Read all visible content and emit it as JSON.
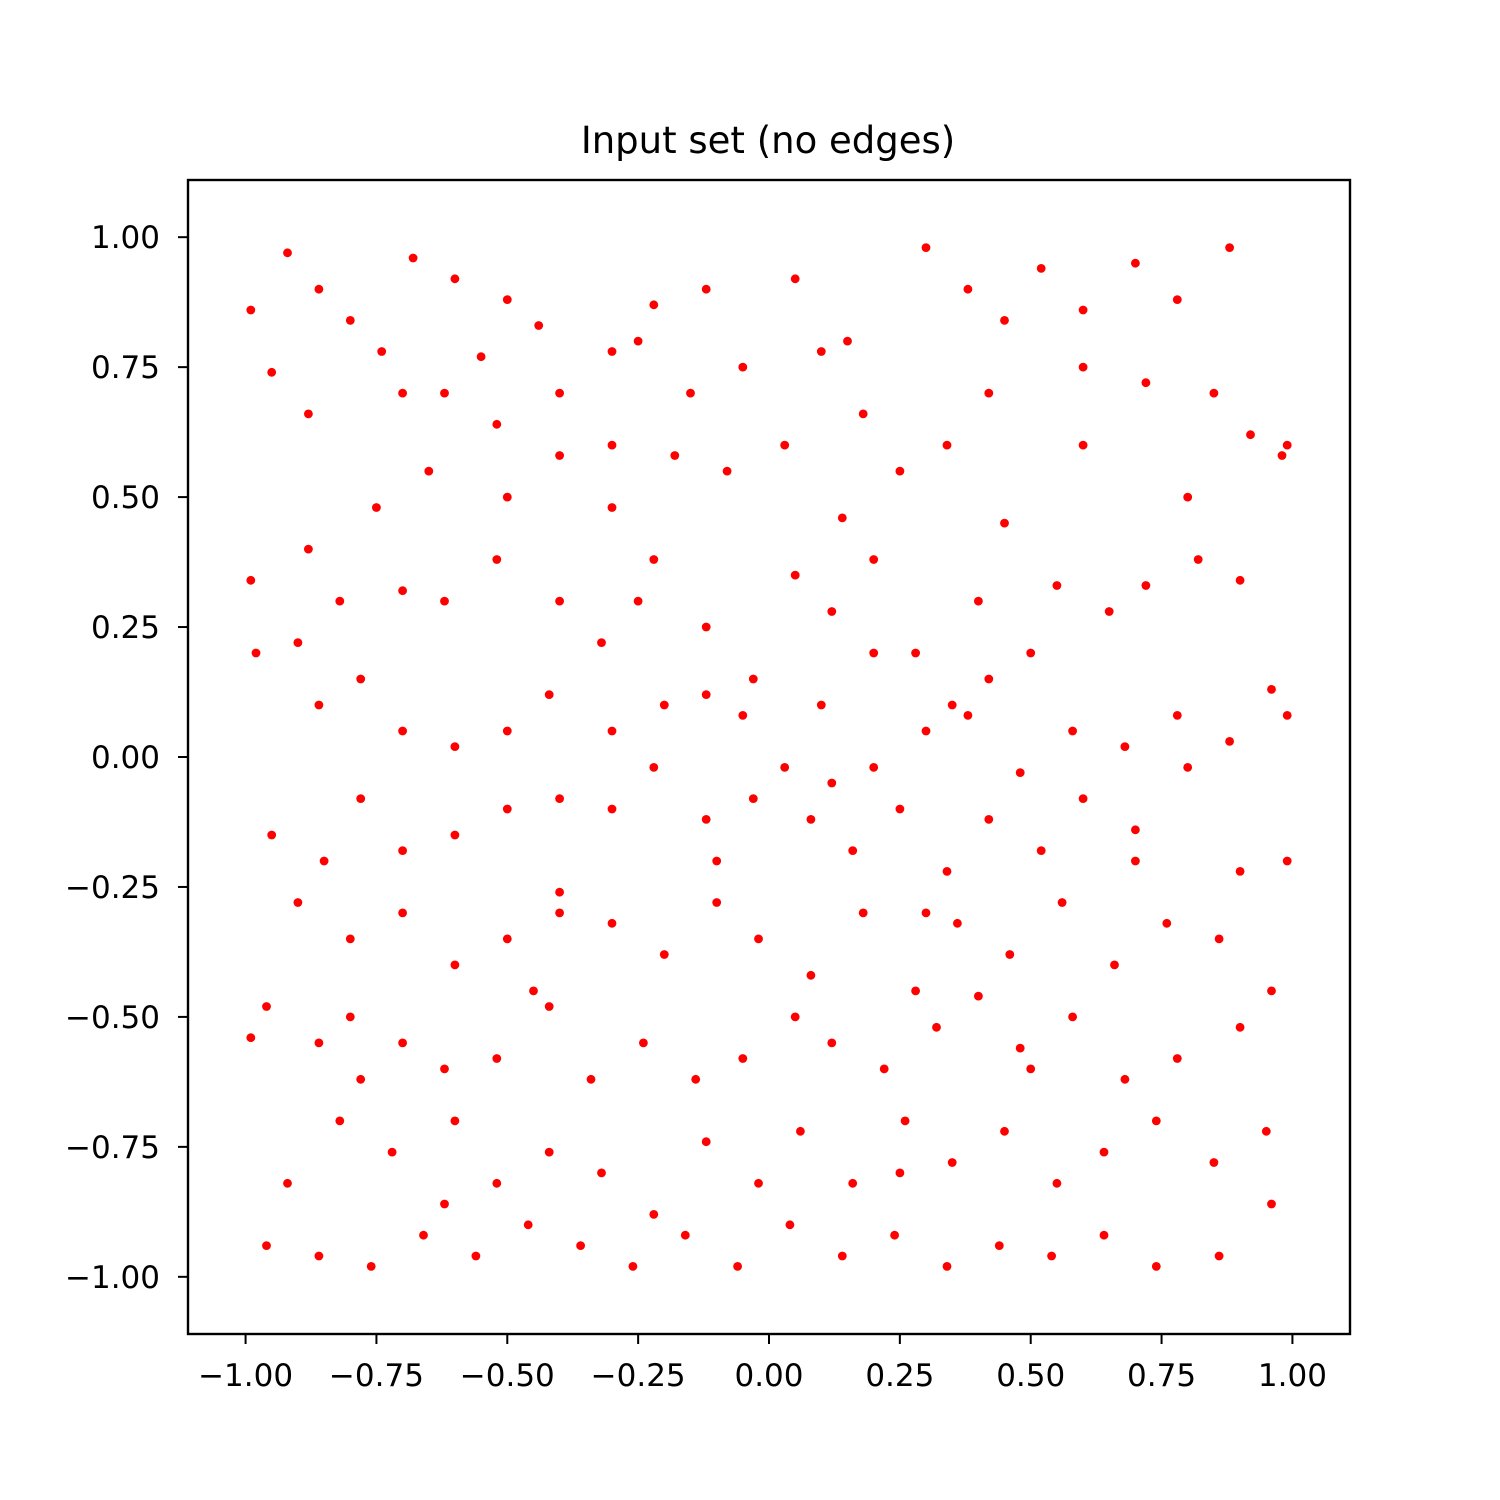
{
  "chart_data": {
    "type": "scatter",
    "title": "Input set (no edges)",
    "xlabel": "",
    "ylabel": "",
    "xlim": [
      -1.11,
      1.11
    ],
    "ylim": [
      -1.11,
      1.11
    ],
    "x_ticks": [
      -1.0,
      -0.75,
      -0.5,
      -0.25,
      0.0,
      0.25,
      0.5,
      0.75,
      1.0
    ],
    "y_ticks": [
      -1.0,
      -0.75,
      -0.5,
      -0.25,
      0.0,
      0.25,
      0.5,
      0.75,
      1.0
    ],
    "x_tick_labels": [
      "−1.00",
      "−0.75",
      "−0.50",
      "−0.25",
      "0.00",
      "0.25",
      "0.50",
      "0.75",
      "1.00"
    ],
    "y_tick_labels": [
      "−1.00",
      "−0.75",
      "−0.50",
      "−0.25",
      "0.00",
      "0.25",
      "0.50",
      "0.75",
      "1.00"
    ],
    "grid": false,
    "legend": "none",
    "marker_color": "#ff0000",
    "series": [
      {
        "points": [
          [
            -0.92,
            0.97
          ],
          [
            -0.86,
            0.9
          ],
          [
            -0.8,
            0.84
          ],
          [
            -0.74,
            0.78
          ],
          [
            -0.95,
            0.74
          ],
          [
            -0.88,
            0.66
          ],
          [
            -0.68,
            0.96
          ],
          [
            -0.6,
            0.92
          ],
          [
            -0.5,
            0.88
          ],
          [
            -0.44,
            0.83
          ],
          [
            -0.62,
            0.7
          ],
          [
            -0.55,
            0.77
          ],
          [
            -0.4,
            0.7
          ],
          [
            -0.3,
            0.78
          ],
          [
            -0.22,
            0.87
          ],
          [
            -0.12,
            0.9
          ],
          [
            -0.05,
            0.75
          ],
          [
            0.05,
            0.92
          ],
          [
            0.1,
            0.78
          ],
          [
            0.18,
            0.66
          ],
          [
            0.3,
            0.98
          ],
          [
            0.38,
            0.9
          ],
          [
            0.45,
            0.84
          ],
          [
            0.52,
            0.94
          ],
          [
            0.6,
            0.86
          ],
          [
            0.7,
            0.95
          ],
          [
            0.78,
            0.88
          ],
          [
            0.88,
            0.98
          ],
          [
            0.85,
            0.7
          ],
          [
            0.92,
            0.62
          ],
          [
            0.98,
            0.58
          ],
          [
            0.72,
            0.72
          ],
          [
            0.6,
            0.75
          ],
          [
            0.42,
            0.7
          ],
          [
            0.34,
            0.6
          ],
          [
            0.25,
            0.55
          ],
          [
            0.14,
            0.46
          ],
          [
            0.03,
            0.6
          ],
          [
            -0.08,
            0.55
          ],
          [
            -0.18,
            0.58
          ],
          [
            -0.3,
            0.48
          ],
          [
            -0.4,
            0.58
          ],
          [
            -0.52,
            0.64
          ],
          [
            -0.65,
            0.55
          ],
          [
            -0.75,
            0.48
          ],
          [
            -0.88,
            0.4
          ],
          [
            -0.82,
            0.3
          ],
          [
            -0.9,
            0.22
          ],
          [
            -0.98,
            0.2
          ],
          [
            -0.7,
            0.32
          ],
          [
            -0.62,
            0.3
          ],
          [
            -0.52,
            0.38
          ],
          [
            -0.4,
            0.3
          ],
          [
            -0.32,
            0.22
          ],
          [
            -0.22,
            0.38
          ],
          [
            -0.12,
            0.25
          ],
          [
            -0.03,
            0.15
          ],
          [
            0.05,
            0.35
          ],
          [
            0.12,
            0.28
          ],
          [
            0.2,
            0.38
          ],
          [
            0.28,
            0.2
          ],
          [
            0.35,
            0.1
          ],
          [
            0.42,
            0.15
          ],
          [
            0.5,
            0.2
          ],
          [
            0.55,
            0.33
          ],
          [
            0.65,
            0.28
          ],
          [
            0.72,
            0.33
          ],
          [
            0.82,
            0.38
          ],
          [
            0.9,
            0.34
          ],
          [
            0.96,
            0.13
          ],
          [
            0.88,
            0.03
          ],
          [
            0.78,
            0.08
          ],
          [
            0.68,
            0.02
          ],
          [
            0.58,
            0.05
          ],
          [
            0.48,
            -0.03
          ],
          [
            0.38,
            0.08
          ],
          [
            0.3,
            0.05
          ],
          [
            0.2,
            -0.02
          ],
          [
            0.12,
            -0.05
          ],
          [
            0.03,
            -0.02
          ],
          [
            -0.05,
            0.08
          ],
          [
            -0.12,
            0.12
          ],
          [
            -0.2,
            0.1
          ],
          [
            -0.3,
            0.05
          ],
          [
            -0.42,
            0.12
          ],
          [
            -0.5,
            0.05
          ],
          [
            -0.6,
            0.02
          ],
          [
            -0.7,
            0.05
          ],
          [
            -0.78,
            0.15
          ],
          [
            -0.86,
            0.1
          ],
          [
            -0.95,
            -0.15
          ],
          [
            -0.85,
            -0.2
          ],
          [
            -0.78,
            -0.08
          ],
          [
            -0.7,
            -0.18
          ],
          [
            -0.6,
            -0.15
          ],
          [
            -0.5,
            -0.1
          ],
          [
            -0.4,
            -0.08
          ],
          [
            -0.3,
            -0.1
          ],
          [
            -0.22,
            -0.02
          ],
          [
            -0.12,
            -0.12
          ],
          [
            -0.03,
            -0.08
          ],
          [
            0.08,
            -0.12
          ],
          [
            0.16,
            -0.18
          ],
          [
            0.25,
            -0.1
          ],
          [
            0.34,
            -0.22
          ],
          [
            0.42,
            -0.12
          ],
          [
            0.52,
            -0.18
          ],
          [
            0.6,
            -0.08
          ],
          [
            0.7,
            -0.14
          ],
          [
            0.8,
            -0.02
          ],
          [
            0.9,
            -0.22
          ],
          [
            0.96,
            -0.45
          ],
          [
            0.86,
            -0.35
          ],
          [
            0.76,
            -0.32
          ],
          [
            0.66,
            -0.4
          ],
          [
            0.56,
            -0.28
          ],
          [
            0.46,
            -0.38
          ],
          [
            0.36,
            -0.32
          ],
          [
            0.28,
            -0.45
          ],
          [
            0.18,
            -0.3
          ],
          [
            0.08,
            -0.42
          ],
          [
            -0.02,
            -0.35
          ],
          [
            -0.1,
            -0.28
          ],
          [
            -0.2,
            -0.38
          ],
          [
            -0.3,
            -0.32
          ],
          [
            -0.4,
            -0.26
          ],
          [
            -0.5,
            -0.35
          ],
          [
            -0.6,
            -0.4
          ],
          [
            -0.7,
            -0.3
          ],
          [
            -0.8,
            -0.35
          ],
          [
            -0.9,
            -0.28
          ],
          [
            -0.96,
            -0.48
          ],
          [
            -0.86,
            -0.55
          ],
          [
            -0.78,
            -0.62
          ],
          [
            -0.7,
            -0.55
          ],
          [
            -0.62,
            -0.6
          ],
          [
            -0.52,
            -0.58
          ],
          [
            -0.42,
            -0.48
          ],
          [
            -0.34,
            -0.62
          ],
          [
            -0.24,
            -0.55
          ],
          [
            -0.14,
            -0.62
          ],
          [
            -0.05,
            -0.58
          ],
          [
            0.05,
            -0.5
          ],
          [
            0.12,
            -0.55
          ],
          [
            0.22,
            -0.6
          ],
          [
            0.32,
            -0.52
          ],
          [
            0.4,
            -0.46
          ],
          [
            0.48,
            -0.56
          ],
          [
            0.58,
            -0.5
          ],
          [
            0.68,
            -0.62
          ],
          [
            0.78,
            -0.58
          ],
          [
            0.9,
            -0.52
          ],
          [
            0.95,
            -0.72
          ],
          [
            0.85,
            -0.78
          ],
          [
            0.74,
            -0.7
          ],
          [
            0.64,
            -0.76
          ],
          [
            0.55,
            -0.82
          ],
          [
            0.45,
            -0.72
          ],
          [
            0.35,
            -0.78
          ],
          [
            0.26,
            -0.7
          ],
          [
            0.16,
            -0.82
          ],
          [
            0.06,
            -0.72
          ],
          [
            -0.02,
            -0.82
          ],
          [
            -0.12,
            -0.74
          ],
          [
            -0.22,
            -0.88
          ],
          [
            -0.32,
            -0.8
          ],
          [
            -0.42,
            -0.76
          ],
          [
            -0.52,
            -0.82
          ],
          [
            -0.62,
            -0.86
          ],
          [
            -0.72,
            -0.76
          ],
          [
            -0.82,
            -0.7
          ],
          [
            -0.92,
            -0.82
          ],
          [
            -0.96,
            -0.94
          ],
          [
            -0.86,
            -0.96
          ],
          [
            -0.76,
            -0.98
          ],
          [
            -0.66,
            -0.92
          ],
          [
            -0.56,
            -0.96
          ],
          [
            -0.46,
            -0.9
          ],
          [
            -0.36,
            -0.94
          ],
          [
            -0.26,
            -0.98
          ],
          [
            -0.16,
            -0.92
          ],
          [
            -0.06,
            -0.98
          ],
          [
            0.04,
            -0.9
          ],
          [
            0.14,
            -0.96
          ],
          [
            0.24,
            -0.92
          ],
          [
            0.34,
            -0.98
          ],
          [
            0.44,
            -0.94
          ],
          [
            0.54,
            -0.96
          ],
          [
            0.64,
            -0.92
          ],
          [
            0.74,
            -0.98
          ],
          [
            0.86,
            -0.96
          ],
          [
            0.96,
            -0.86
          ],
          [
            -0.99,
            0.34
          ],
          [
            -0.99,
            -0.54
          ],
          [
            -0.99,
            0.86
          ],
          [
            0.99,
            0.6
          ],
          [
            0.99,
            -0.2
          ],
          [
            0.99,
            0.08
          ],
          [
            0.1,
            0.1
          ],
          [
            -0.1,
            -0.2
          ],
          [
            0.2,
            0.2
          ],
          [
            -0.25,
            0.3
          ],
          [
            0.45,
            0.45
          ],
          [
            -0.45,
            -0.45
          ],
          [
            0.3,
            -0.3
          ],
          [
            -0.3,
            0.6
          ],
          [
            0.6,
            0.6
          ],
          [
            -0.6,
            -0.7
          ],
          [
            0.7,
            -0.2
          ],
          [
            -0.7,
            0.7
          ],
          [
            0.15,
            0.8
          ],
          [
            -0.15,
            0.7
          ],
          [
            0.4,
            0.3
          ],
          [
            -0.4,
            -0.3
          ],
          [
            0.5,
            -0.6
          ],
          [
            -0.5,
            0.5
          ],
          [
            0.8,
            0.5
          ],
          [
            -0.8,
            -0.5
          ],
          [
            0.25,
            -0.8
          ],
          [
            -0.25,
            0.8
          ]
        ]
      }
    ]
  }
}
